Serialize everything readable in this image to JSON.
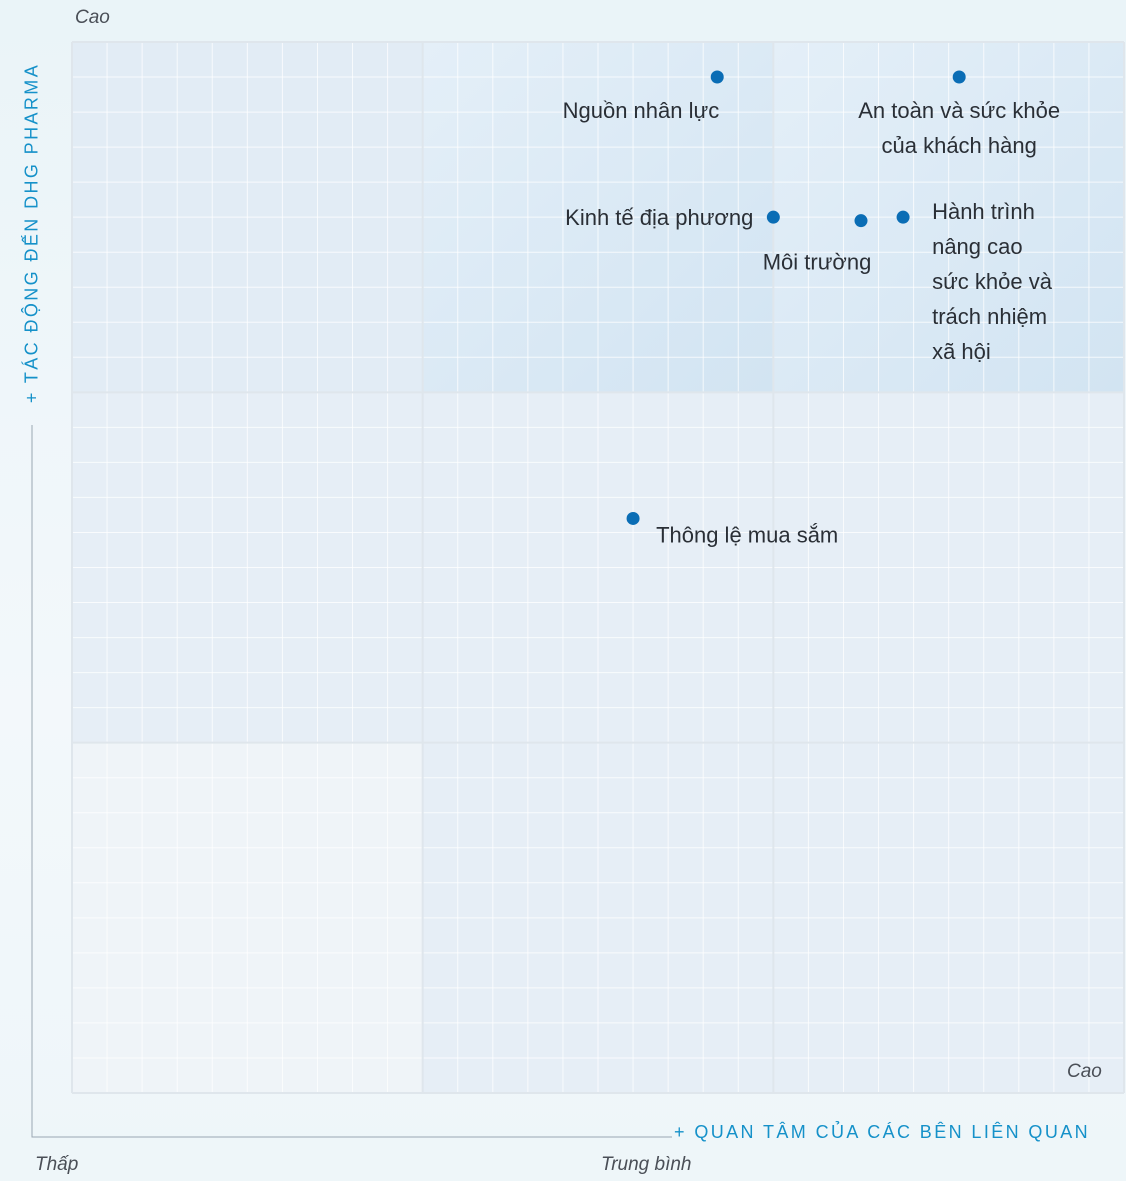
{
  "chart_data": {
    "type": "scatter",
    "xlabel": "+ QUAN TÂM CỦA CÁC BÊN LIÊN QUAN",
    "ylabel": "+ TÁC ĐỘNG ĐẾN DHG PHARMA",
    "axis_labels": {
      "y_high": "Cao",
      "x_high": "Cao",
      "origin_low": "Thấp",
      "x_mid": "Trung bình"
    },
    "xlim": [
      0,
      3
    ],
    "ylim": [
      0,
      3
    ],
    "grid": true,
    "points": [
      {
        "label": "Nguồn nhân lực",
        "x": 1.84,
        "y": 2.9
      },
      {
        "label": "An toàn và sức khỏe\ncủa khách hàng",
        "x": 2.53,
        "y": 2.9
      },
      {
        "label": "Kinh tế địa phương",
        "x": 2.0,
        "y": 2.5
      },
      {
        "label": "Môi trường",
        "x": 2.25,
        "y": 2.49
      },
      {
        "label": "Hành trình\nnâng cao\nsức khỏe và\ntrách nhiệm\nxã hội",
        "x": 2.37,
        "y": 2.5
      },
      {
        "label": "Thông lệ mua sắm",
        "x": 1.6,
        "y": 1.64
      }
    ],
    "colors": {
      "point": "#0a6db5",
      "axis_title": "#1591c9",
      "high_zone": "#d2e4f2",
      "grid": "#ffffff"
    }
  }
}
